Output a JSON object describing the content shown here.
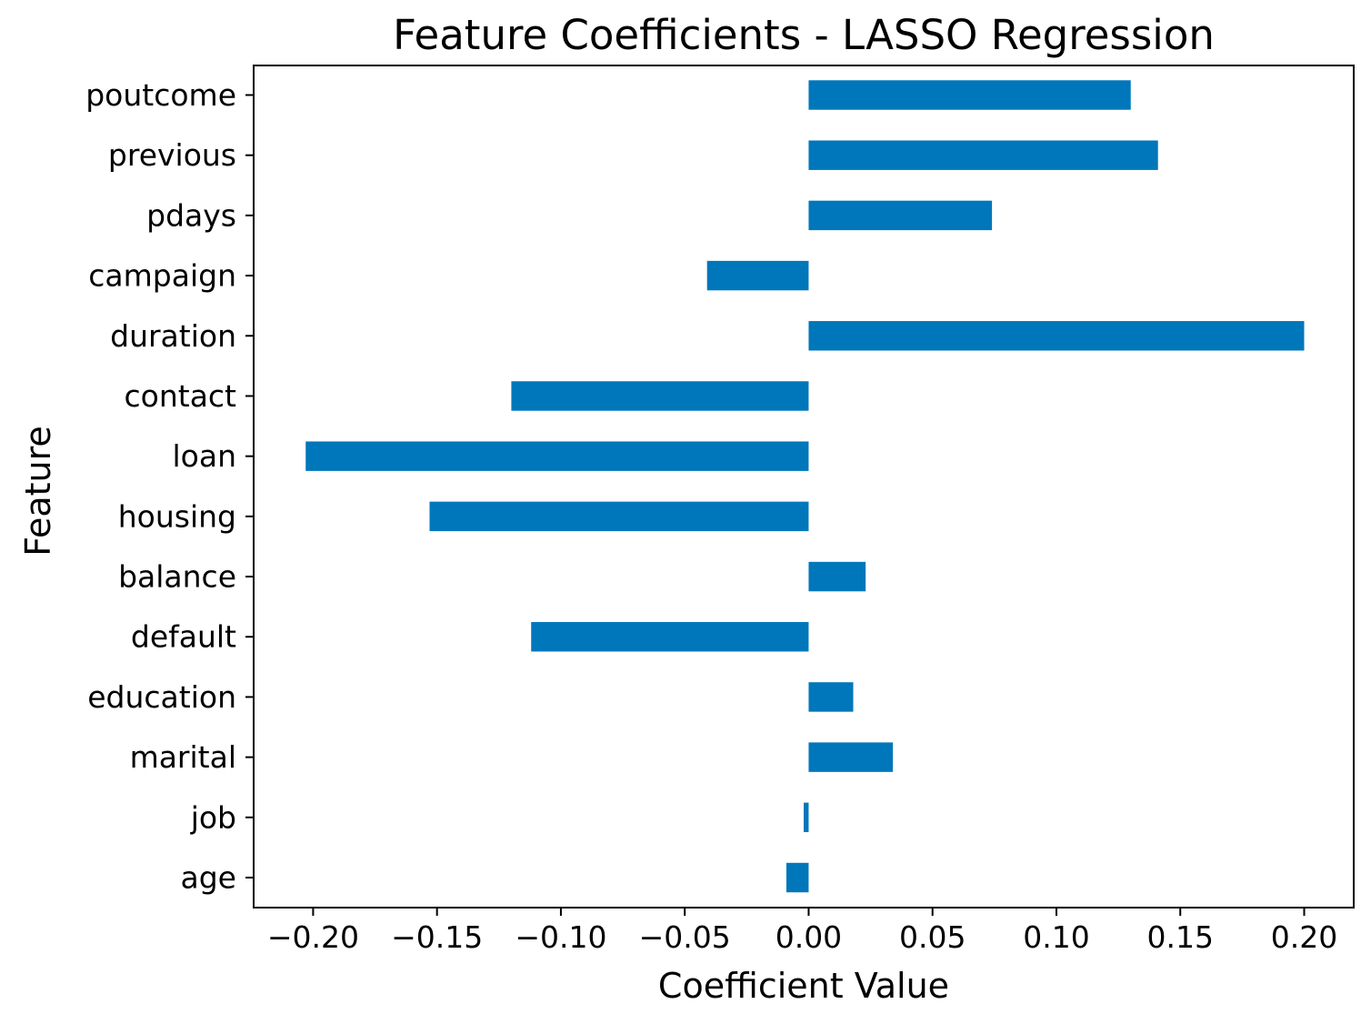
{
  "chart_data": {
    "type": "bar",
    "orientation": "horizontal",
    "title": "Feature Coefficients - LASSO Regression",
    "xlabel": "Coefficient Value",
    "ylabel": "Feature",
    "categories": [
      "age",
      "job",
      "marital",
      "education",
      "default",
      "balance",
      "housing",
      "loan",
      "contact",
      "duration",
      "campaign",
      "pdays",
      "previous",
      "poutcome"
    ],
    "values": [
      -0.009,
      -0.002,
      0.034,
      0.018,
      -0.112,
      0.023,
      -0.153,
      -0.203,
      -0.12,
      0.2,
      -0.041,
      0.074,
      0.141,
      0.13
    ],
    "xlim": [
      -0.224,
      0.22
    ],
    "xticks": [
      -0.2,
      -0.15,
      -0.1,
      -0.05,
      0.0,
      0.05,
      0.1,
      0.15,
      0.2
    ],
    "xtick_labels": [
      "−0.20",
      "−0.15",
      "−0.10",
      "−0.05",
      "0.00",
      "0.05",
      "0.10",
      "0.15",
      "0.20"
    ],
    "bar_color": "#0077bb",
    "grid": false,
    "legend": "none"
  }
}
